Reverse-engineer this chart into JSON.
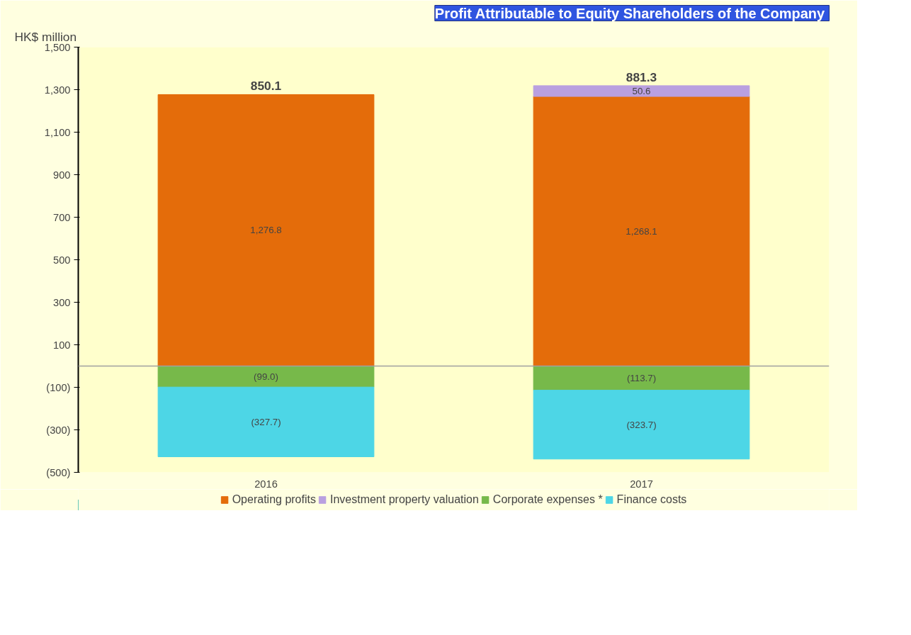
{
  "chart_data": {
    "type": "bar",
    "stacked": true,
    "title": "Profit Attributable  to Equity Shareholders of the Company",
    "ylabel": "HK$ million",
    "categories": [
      "2016",
      "2017"
    ],
    "series": [
      {
        "name": "Operating profits",
        "color": "#e46c0a",
        "values": [
          1276.8,
          1268.1
        ],
        "value_labels": [
          "1,276.8",
          "1,268.1"
        ]
      },
      {
        "name": "Investment property valuation",
        "color": "#b9a0e0",
        "values": [
          null,
          50.6
        ],
        "value_labels": [
          null,
          "50.6"
        ]
      },
      {
        "name": "Corporate expenses *",
        "color": "#77b94a",
        "values": [
          -99.0,
          -113.7
        ],
        "value_labels": [
          "(99.0)",
          "(113.7)"
        ]
      },
      {
        "name": "Finance costs",
        "color": "#4dd6e6",
        "values": [
          -327.7,
          -323.7
        ],
        "value_labels": [
          "(327.7)",
          "(323.7)"
        ]
      }
    ],
    "totals": [
      "850.1",
      "881.3"
    ],
    "ylim": [
      -500,
      1500
    ],
    "yticks": [
      {
        "value": -500,
        "label": "(500)"
      },
      {
        "value": -300,
        "label": "(300)"
      },
      {
        "value": -100,
        "label": "(100)"
      },
      100,
      300,
      500,
      700,
      900,
      {
        "value": 1100,
        "label": "1,100"
      },
      {
        "value": 1300,
        "label": "1,300"
      },
      {
        "value": 1500,
        "label": "1,500"
      }
    ],
    "ref_lines": [
      {
        "axis": "y",
        "value": 0,
        "color": "#a0a0a0"
      }
    ],
    "grid": false,
    "legend": "bottom"
  }
}
